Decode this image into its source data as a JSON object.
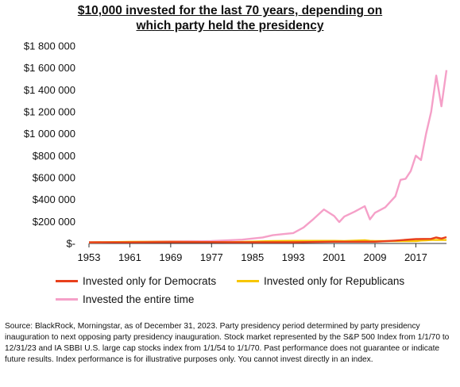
{
  "title_line1": "$10,000 invested for the last 70 years, depending on",
  "title_line2": "which party held the presidency",
  "source": "Source: BlackRock, Morningstar, as of December 31, 2023. Party presidency period determined by party presidency inauguration to next opposing party presidency inauguration. Stock market represented by the S&P 500 Index from 1/1/70 to 12/31/23 and IA SBBI U.S. large cap stocks index from 1/1/54 to 1/1/70. Past performance does not guarantee or indicate future results. Index performance is for illustrative purposes only. You cannot invest directly in  an index.",
  "chart_data": {
    "type": "line",
    "title": "$10,000 invested for the last 70 years, depending on which party held the presidency",
    "xlabel": "",
    "ylabel": "",
    "xlim": [
      1953,
      2023
    ],
    "ylim": [
      0,
      1800000
    ],
    "x_ticks": [
      "1953",
      "1961",
      "1969",
      "1977",
      "1985",
      "1993",
      "2001",
      "2009",
      "2017"
    ],
    "y_ticks": [
      "$-",
      "$200 000",
      "$400 000",
      "$600 000",
      "$800 000",
      "$1 000 000",
      "$1 200 000",
      "$1 400 000",
      "$1 600 000",
      "$1 800 000"
    ],
    "grid": false,
    "legend_position": "bottom",
    "series": [
      {
        "name": "Invested only for Democrats",
        "color": "#e8401c",
        "x": [
          1953,
          1961,
          1969,
          1977,
          1981,
          1993,
          2001,
          2009,
          2013,
          2017,
          2020,
          2021,
          2022,
          2023
        ],
        "y": [
          10000,
          10000,
          12000,
          12000,
          11000,
          11000,
          16000,
          16000,
          26000,
          40000,
          42000,
          55000,
          45000,
          58000
        ]
      },
      {
        "name": "Invested only for Republicans",
        "color": "#f7c600",
        "x": [
          1953,
          1961,
          1969,
          1977,
          1981,
          1989,
          1993,
          2001,
          2003,
          2007,
          2008,
          2009,
          2017,
          2018,
          2019,
          2020,
          2021,
          2023
        ],
        "y": [
          10000,
          15000,
          15000,
          12000,
          12000,
          22000,
          24000,
          24000,
          22000,
          30000,
          24000,
          22000,
          22000,
          27000,
          28000,
          32000,
          32000,
          32000
        ]
      },
      {
        "name": "Invested the entire time",
        "color": "#f5a0c8",
        "x": [
          1953,
          1958,
          1961,
          1965,
          1969,
          1973,
          1975,
          1977,
          1980,
          1983,
          1985,
          1987,
          1989,
          1991,
          1993,
          1995,
          1997,
          1999,
          2001,
          2002,
          2003,
          2005,
          2007,
          2008,
          2009,
          2011,
          2013,
          2014,
          2015,
          2016,
          2017,
          2018,
          2019,
          2020,
          2021,
          2022,
          2023
        ],
        "y": [
          10000,
          12000,
          14000,
          17000,
          20000,
          21000,
          20000,
          22000,
          28000,
          35000,
          45000,
          55000,
          75000,
          85000,
          95000,
          145000,
          225000,
          310000,
          250000,
          195000,
          245000,
          290000,
          340000,
          220000,
          280000,
          330000,
          430000,
          580000,
          590000,
          660000,
          800000,
          760000,
          1000000,
          1200000,
          1530000,
          1250000,
          1580000
        ]
      }
    ]
  }
}
